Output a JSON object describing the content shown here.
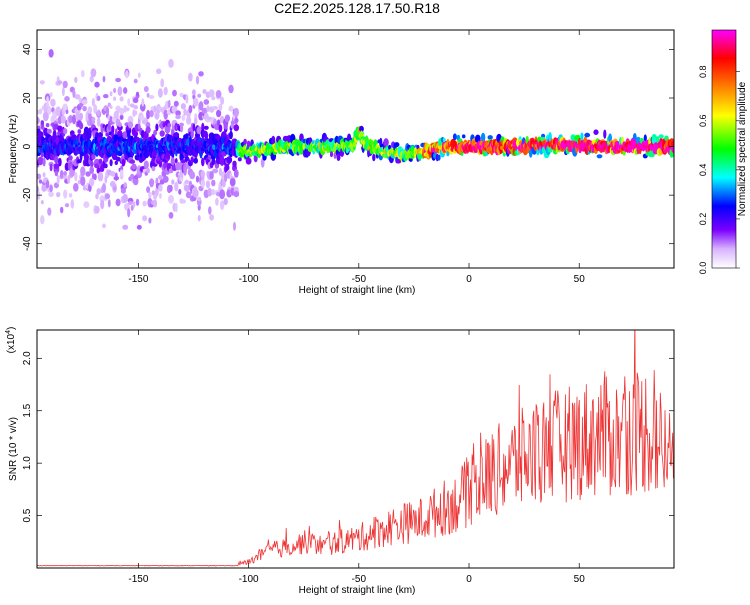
{
  "chart_data": [
    {
      "type": "heatmap",
      "title": "C2E2.2025.128.17.50.R18",
      "xlabel": "Height of straight line (km)",
      "ylabel": "Frequency (Hz)",
      "xlim": [
        -196,
        93
      ],
      "ylim": [
        -50,
        48
      ],
      "x_ticks": [
        -150,
        -100,
        -50,
        0,
        50
      ],
      "y_ticks": [
        -40,
        -20,
        0,
        20,
        40
      ],
      "colorbar": {
        "label": "Normalized spectral amplitude",
        "range": [
          0.0,
          0.97
        ],
        "ticks": [
          "0.0",
          "0.2",
          "0.4",
          "0.6",
          "0.8"
        ],
        "colors": [
          "#ffffff",
          "#7a00ff",
          "#0000ff",
          "#00ffff",
          "#00ff00",
          "#ffff00",
          "#ff8000",
          "#ff0000",
          "#ff00ff"
        ]
      },
      "ridge": {
        "x": [
          -196,
          -150,
          -110,
          -100,
          -90,
          -80,
          -70,
          -60,
          -52,
          -50,
          -48,
          -40,
          -30,
          -20,
          -15,
          -10,
          0,
          20,
          40,
          60,
          80,
          93
        ],
        "frequency": [
          0,
          0,
          0,
          -2,
          -1,
          0,
          0,
          0,
          1,
          7,
          2,
          -2,
          -3,
          -2,
          -1,
          0,
          0,
          0,
          1,
          0,
          0,
          0
        ]
      }
    },
    {
      "type": "line",
      "xlabel": "Height of straight line (km)",
      "ylabel": "SNR (10 * v/v)",
      "yscale_label": "(x10",
      "yscale_exp": "4",
      "yscale_close": ")",
      "xlim": [
        -196,
        93
      ],
      "ylim": [
        0.0,
        2.27
      ],
      "x_ticks": [
        -150,
        -100,
        -50,
        0,
        50
      ],
      "y_ticks": [
        0.5,
        1.0,
        1.5,
        2.0
      ],
      "series": [
        {
          "color": "#ee3333",
          "x": [
            -196,
            -150,
            -110,
            -100,
            -95,
            -90,
            -85,
            -80,
            -75,
            -70,
            -65,
            -60,
            -55,
            -50,
            -45,
            -40,
            -35,
            -30,
            -25,
            -20,
            -15,
            -10,
            -5,
            0,
            5,
            10,
            15,
            20,
            25,
            30,
            35,
            40,
            45,
            50,
            55,
            60,
            65,
            70,
            75,
            80,
            85,
            90,
            93
          ],
          "values": [
            0.02,
            0.02,
            0.02,
            0.06,
            0.12,
            0.17,
            0.2,
            0.22,
            0.26,
            0.24,
            0.22,
            0.26,
            0.28,
            0.3,
            0.34,
            0.38,
            0.42,
            0.45,
            0.46,
            0.5,
            0.56,
            0.62,
            0.66,
            0.78,
            0.85,
            0.95,
            1.0,
            1.05,
            1.1,
            1.15,
            1.2,
            1.22,
            1.25,
            1.28,
            1.3,
            1.35,
            1.32,
            1.3,
            1.38,
            1.4,
            1.3,
            1.15,
            1.05
          ]
        }
      ]
    }
  ]
}
